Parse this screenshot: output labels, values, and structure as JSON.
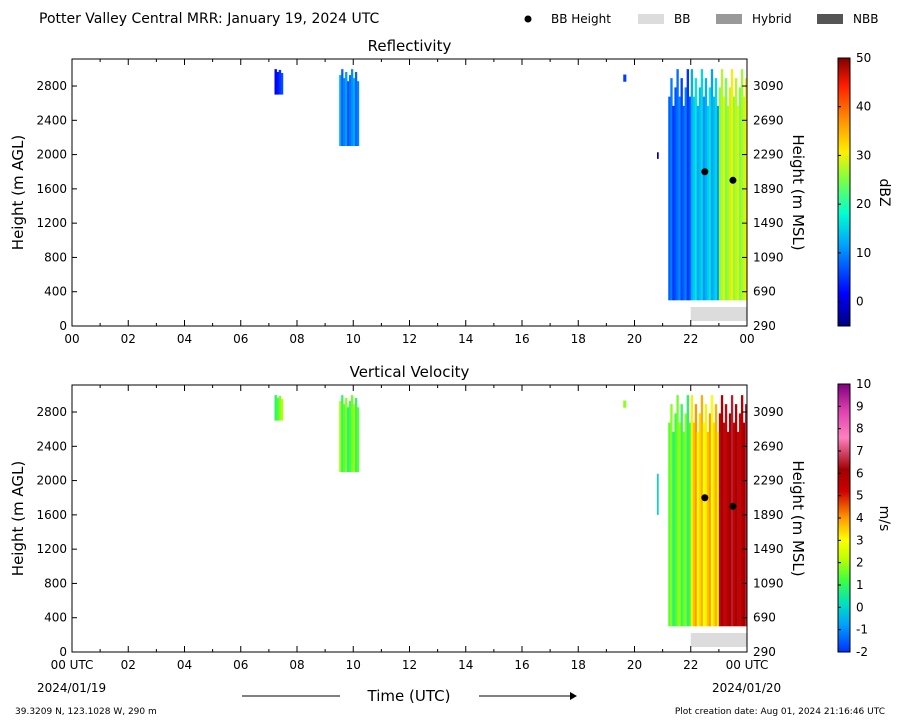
{
  "header": {
    "title": "Potter Valley Central MRR:  January 19, 2024 UTC",
    "legend": [
      {
        "label": "BB Height",
        "kind": "dot",
        "color": "#000000"
      },
      {
        "label": "BB",
        "kind": "box",
        "color": "#dcdcdc"
      },
      {
        "label": "Hybrid",
        "kind": "box",
        "color": "#999999"
      },
      {
        "label": "NBB",
        "kind": "box",
        "color": "#555555"
      }
    ]
  },
  "footer": {
    "location": "39.3209 N, 123.1028 W, 290 m",
    "creation": "Plot creation date: Aug 01, 2024 21:16:46 UTC",
    "time_label": "Time (UTC)",
    "start_date": "2024/01/19",
    "end_date": "2024/01/20"
  },
  "chart_data": [
    {
      "type": "heatmap",
      "title": "Reflectivity",
      "ylabel": "Height (m AGL)",
      "y2label": "Height (m MSL)",
      "colorbar_label": "dBZ",
      "x_ticks": [
        "00",
        "02",
        "04",
        "06",
        "08",
        "10",
        "12",
        "14",
        "16",
        "18",
        "20",
        "22",
        "00"
      ],
      "xlim_hours": [
        0,
        24
      ],
      "ylim": [
        0,
        3000
      ],
      "y_ticks": [
        0,
        400,
        800,
        1200,
        1600,
        2000,
        2400,
        2800
      ],
      "y2_ticks": [
        290,
        690,
        1090,
        1490,
        1890,
        2290,
        2690,
        3090
      ],
      "colorbar": {
        "min": -5,
        "max": 50,
        "ticks": [
          0,
          10,
          20,
          30,
          40,
          50
        ]
      },
      "bright_band_points": [
        {
          "hour": 22.5,
          "height": 1800
        },
        {
          "hour": 23.5,
          "height": 1700
        }
      ],
      "bb_type_segments": [
        {
          "start_hour": 22.0,
          "end_hour": 24.0,
          "type": "BB"
        }
      ],
      "echo_regions": [
        {
          "start_hour": 7.2,
          "end_hour": 7.5,
          "bottom": 2700,
          "top": 3000,
          "value": 4
        },
        {
          "start_hour": 9.5,
          "end_hour": 10.2,
          "bottom": 2100,
          "top": 3000,
          "value": 10
        },
        {
          "start_hour": 19.6,
          "end_hour": 19.7,
          "bottom": 2850,
          "top": 2950,
          "value": 4
        },
        {
          "start_hour": 20.8,
          "end_hour": 20.85,
          "bottom": 1950,
          "top": 2030,
          "value": -3
        },
        {
          "start_hour": 21.2,
          "end_hour": 22.0,
          "bottom": 300,
          "top": 3000,
          "value": 8
        },
        {
          "start_hour": 22.0,
          "end_hour": 23.0,
          "bottom": 300,
          "top": 3000,
          "value": 14
        },
        {
          "start_hour": 23.0,
          "end_hour": 24.0,
          "bottom": 300,
          "top": 3000,
          "value": 28
        }
      ]
    },
    {
      "type": "heatmap",
      "title": "Vertical Velocity",
      "ylabel": "Height (m AGL)",
      "y2label": "Height (m MSL)",
      "colorbar_label": "m/s",
      "x_ticks": [
        "00 UTC",
        "02",
        "04",
        "06",
        "08",
        "10",
        "12",
        "14",
        "16",
        "18",
        "20",
        "22",
        "00 UTC"
      ],
      "xlim_hours": [
        0,
        24
      ],
      "ylim": [
        0,
        3000
      ],
      "y_ticks": [
        0,
        400,
        800,
        1200,
        1600,
        2000,
        2400,
        2800
      ],
      "y2_ticks": [
        290,
        690,
        1090,
        1490,
        1890,
        2290,
        2690,
        3090
      ],
      "colorbar": {
        "min": -2,
        "max": 10,
        "ticks": [
          -2,
          -1,
          0,
          1,
          2,
          3,
          4,
          5,
          6,
          7,
          8,
          9,
          10
        ]
      },
      "bright_band_points": [
        {
          "hour": 22.5,
          "height": 1800
        },
        {
          "hour": 23.5,
          "height": 1700
        }
      ],
      "bb_type_segments": [
        {
          "start_hour": 22.0,
          "end_hour": 24.0,
          "type": "BB"
        }
      ],
      "echo_regions": [
        {
          "start_hour": 7.2,
          "end_hour": 7.5,
          "bottom": 2700,
          "top": 3000,
          "value": 1.6
        },
        {
          "start_hour": 9.5,
          "end_hour": 10.2,
          "bottom": 2100,
          "top": 3000,
          "value": 1.5
        },
        {
          "start_hour": 19.6,
          "end_hour": 19.7,
          "bottom": 2850,
          "top": 2950,
          "value": 1.5
        },
        {
          "start_hour": 20.8,
          "end_hour": 20.85,
          "bottom": 1600,
          "top": 2100,
          "value": 0
        },
        {
          "start_hour": 21.2,
          "end_hour": 22.0,
          "bottom": 300,
          "top": 3000,
          "value": 1.5
        },
        {
          "start_hour": 22.0,
          "end_hour": 23.0,
          "bottom": 300,
          "top": 3000,
          "value": 3.5
        },
        {
          "start_hour": 23.0,
          "end_hour": 24.0,
          "bottom": 300,
          "top": 3000,
          "value": 6
        }
      ]
    }
  ]
}
